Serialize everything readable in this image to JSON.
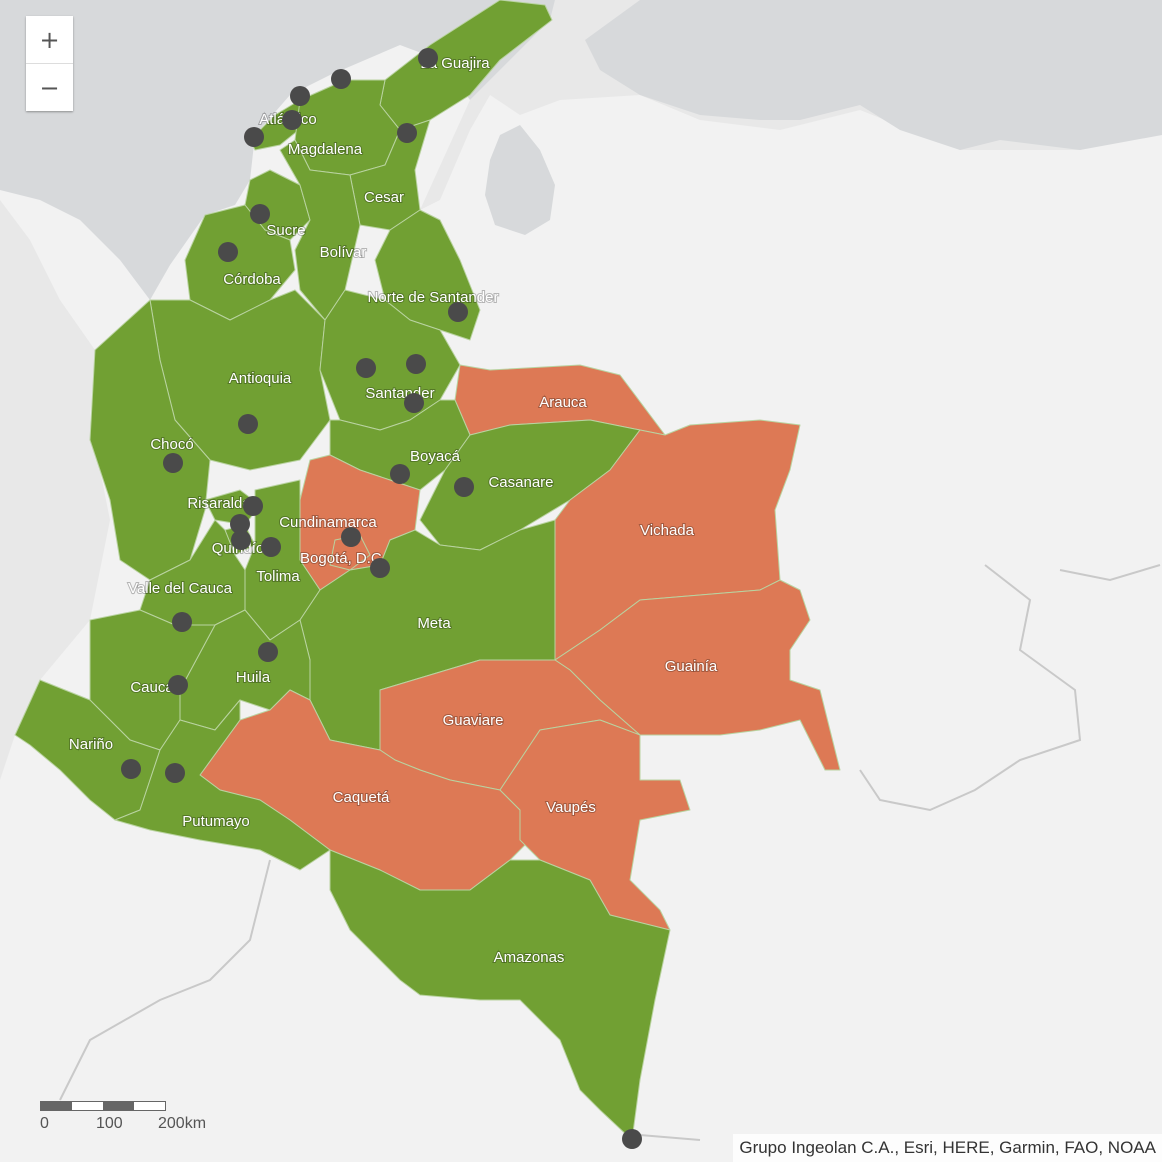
{
  "colors": {
    "ocean": "#e8e8e8",
    "land": "#f2f2f2",
    "water": "#d7d9db",
    "highlight_region": "#dd7955",
    "default_region": "#71a033",
    "marker": "#4a4a4a",
    "border": "#c9c9c9"
  },
  "zoom": {
    "in_label": "+",
    "out_label": "−"
  },
  "scale": {
    "labels": [
      "0",
      "100",
      "200km"
    ]
  },
  "attribution": "Grupo Ingeolan C.A., Esri, HERE, Garmin, FAO, NOAA",
  "regions": [
    {
      "name": "La Guajira",
      "highlighted": false
    },
    {
      "name": "Atlántico",
      "highlighted": false
    },
    {
      "name": "Magdalena",
      "highlighted": false
    },
    {
      "name": "Cesar",
      "highlighted": false
    },
    {
      "name": "Sucre",
      "highlighted": false
    },
    {
      "name": "Bolívar",
      "highlighted": false
    },
    {
      "name": "Córdoba",
      "highlighted": false
    },
    {
      "name": "Norte de Santander",
      "highlighted": false
    },
    {
      "name": "Antioquia",
      "highlighted": false
    },
    {
      "name": "Santander",
      "highlighted": false
    },
    {
      "name": "Arauca",
      "highlighted": true
    },
    {
      "name": "Chocó",
      "highlighted": false
    },
    {
      "name": "Boyacá",
      "highlighted": false
    },
    {
      "name": "Casanare",
      "highlighted": false
    },
    {
      "name": "Risaralda",
      "highlighted": false
    },
    {
      "name": "Cundinamarca",
      "highlighted": true
    },
    {
      "name": "Vichada",
      "highlighted": true
    },
    {
      "name": "Quindío",
      "highlighted": false
    },
    {
      "name": "Bogotá, D.C.",
      "highlighted": true
    },
    {
      "name": "Tolima",
      "highlighted": false
    },
    {
      "name": "Valle del Cauca",
      "highlighted": false
    },
    {
      "name": "Meta",
      "highlighted": false
    },
    {
      "name": "Guainía",
      "highlighted": true
    },
    {
      "name": "Huila",
      "highlighted": false
    },
    {
      "name": "Cauca",
      "highlighted": false
    },
    {
      "name": "Guaviare",
      "highlighted": true
    },
    {
      "name": "Nariño",
      "highlighted": false
    },
    {
      "name": "Caquetá",
      "highlighted": true
    },
    {
      "name": "Vaupés",
      "highlighted": true
    },
    {
      "name": "Putumayo",
      "highlighted": false
    },
    {
      "name": "Amazonas",
      "highlighted": false
    }
  ]
}
